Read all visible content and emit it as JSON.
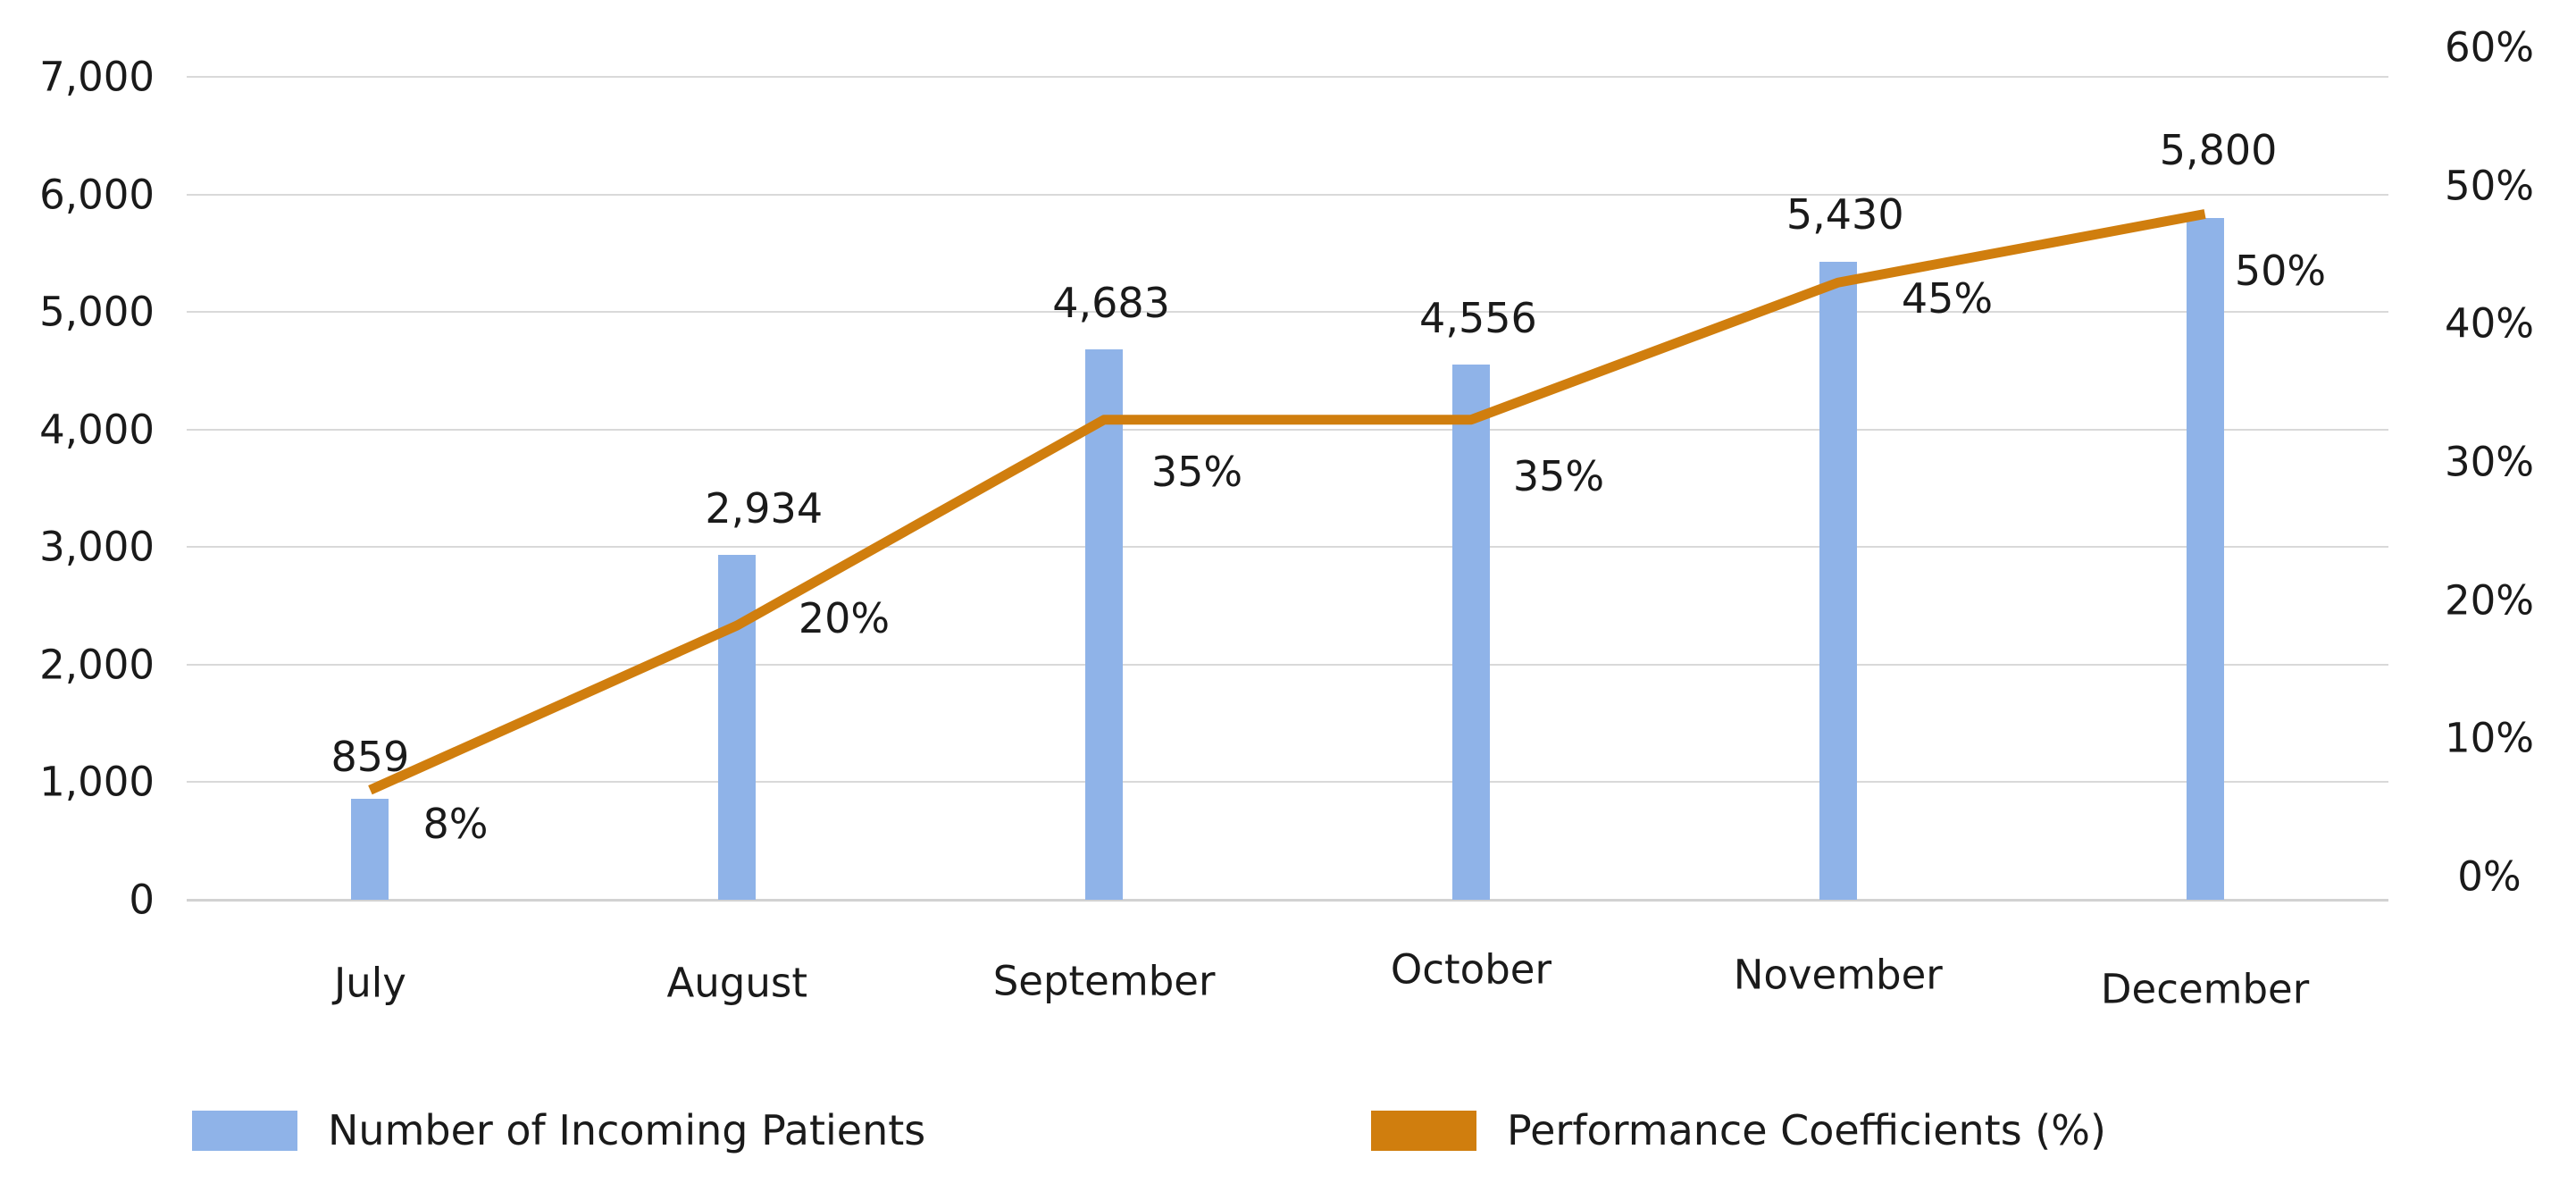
{
  "chart_data": {
    "type": "bar",
    "subtype": "combo-bar-line-dual-axis",
    "title": "",
    "categories": [
      "July",
      "August",
      "September",
      "October",
      "November",
      "December"
    ],
    "series": [
      {
        "name": "Number of Incoming Patients",
        "type": "bar",
        "axis": "left",
        "values": [
          859,
          2934,
          4683,
          4556,
          5430,
          5800
        ],
        "data_labels": [
          "859",
          "2,934",
          "4,683",
          "4,556",
          "5,430",
          "5,800"
        ],
        "color": "#8FB3E8"
      },
      {
        "name": "Performance Coefficients (%)",
        "type": "line",
        "axis": "right",
        "values": [
          8,
          20,
          35,
          35,
          45,
          50
        ],
        "data_labels": [
          "8%",
          "20%",
          "35%",
          "35%",
          "45%",
          "50%"
        ],
        "color": "#D07E0E"
      }
    ],
    "left_axis": {
      "min": 0,
      "max": 7000,
      "step": 1000,
      "tick_labels": [
        "0",
        "1,000",
        "2,000",
        "3,000",
        "4,000",
        "5,000",
        "6,000",
        "7,000"
      ]
    },
    "right_axis": {
      "min": 0,
      "max": 60,
      "step": 10,
      "tick_labels": [
        "0%",
        "10%",
        "20%",
        "30%",
        "40%",
        "50%",
        "60%"
      ]
    },
    "grid": "horizontal",
    "legend_position": "bottom"
  },
  "legend": {
    "items": [
      {
        "label": "Number of Incoming Patients",
        "color": "#8FB3E8"
      },
      {
        "label": "Performance Coefficients (%)",
        "color": "#D07E0E"
      }
    ]
  },
  "colors": {
    "bar": "#8FB3E8",
    "line": "#D07E0E",
    "gridline": "#D9D9D9",
    "text": "#1A1A1A",
    "background": "#FFFFFF"
  }
}
